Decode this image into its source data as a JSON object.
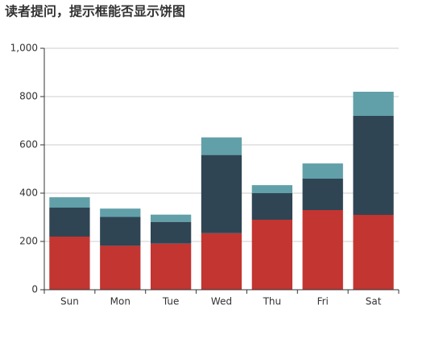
{
  "chart_data": {
    "type": "stacked-bar",
    "title": "读者提问，提示框能否显示饼图",
    "categories": [
      "Sun",
      "Mon",
      "Tue",
      "Wed",
      "Thu",
      "Fri",
      "Sat"
    ],
    "series": [
      {
        "color": "#c23531",
        "values": [
          220,
          182,
          191,
          234,
          290,
          330,
          310
        ]
      },
      {
        "color": "#2f4554",
        "values": [
          120,
          120,
          90,
          324,
          110,
          130,
          410
        ]
      },
      {
        "color": "#61a0a8",
        "values": [
          43,
          34,
          30,
          73,
          33,
          63,
          100
        ]
      }
    ],
    "ylim": [
      0,
      1000
    ],
    "yticks": [
      0,
      200,
      400,
      600,
      800,
      {
        "value": 1000,
        "label": "1,000"
      }
    ],
    "grid": true
  }
}
